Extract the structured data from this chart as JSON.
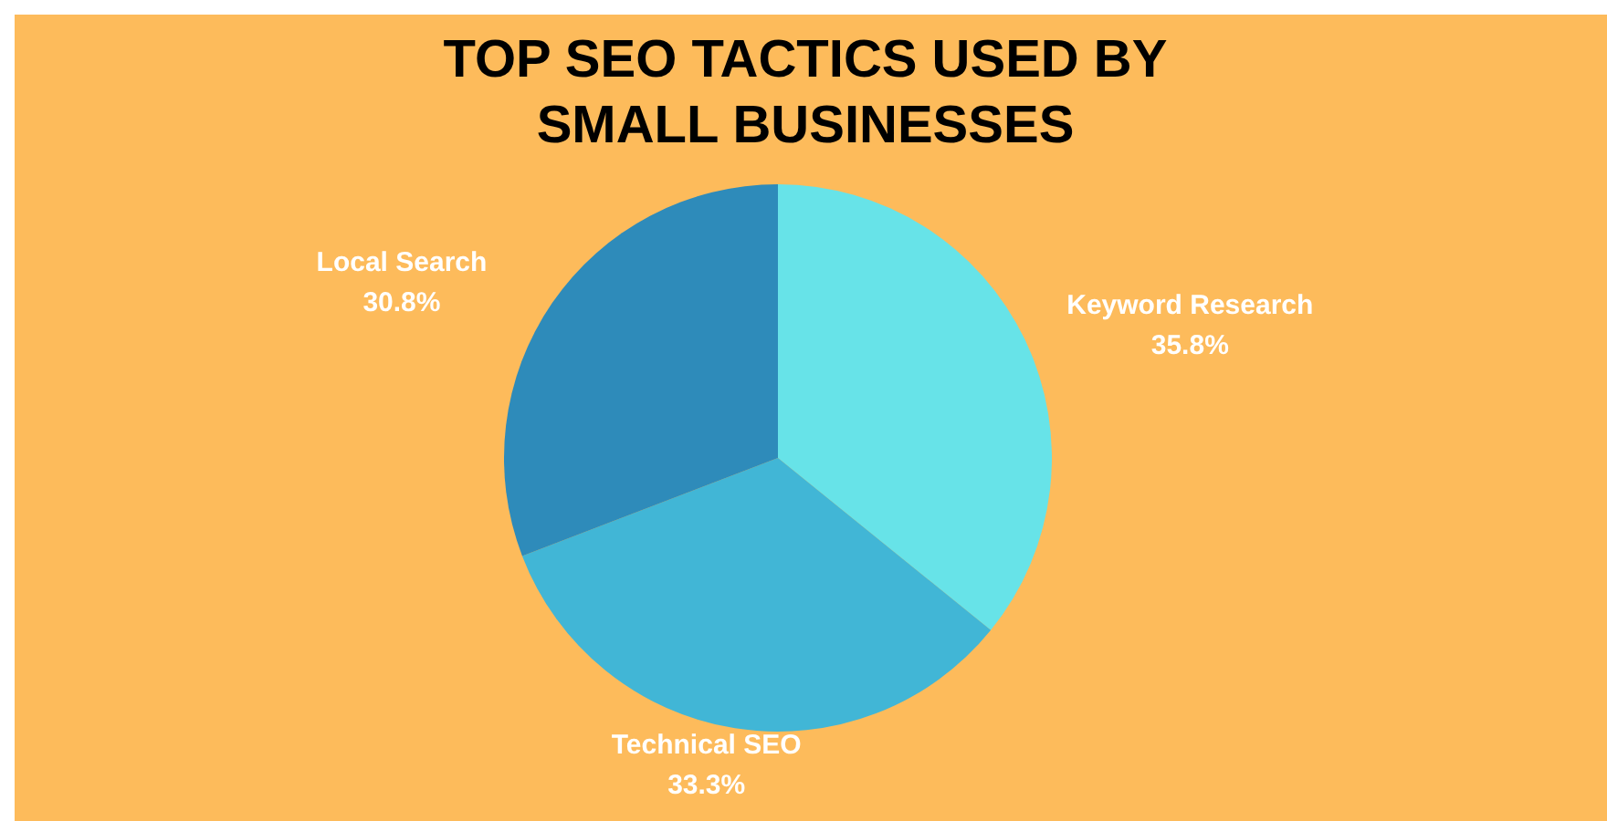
{
  "chart_data": {
    "type": "pie",
    "title": "TOP SEO TACTICS USED BY SMALL BUSINESSES",
    "categories": [
      "Keyword Research",
      "Technical SEO",
      "Local Search"
    ],
    "values": [
      35.8,
      33.3,
      30.8
    ],
    "value_labels": [
      "35.8%",
      "33.3%",
      "30.8%"
    ],
    "colors": [
      "#67e3e8",
      "#41b6d6",
      "#2e8bba"
    ]
  }
}
